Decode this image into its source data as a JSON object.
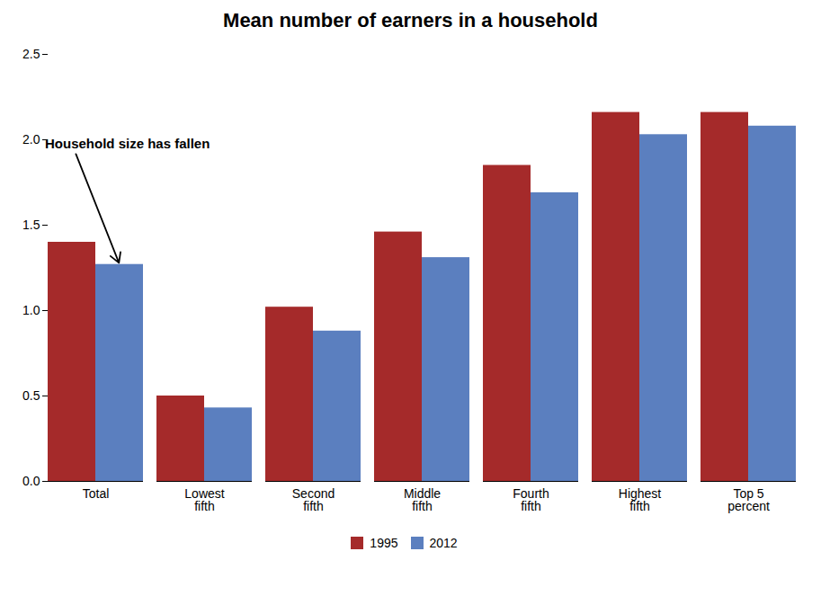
{
  "chart_data": {
    "type": "bar",
    "title": "Mean number of earners in a household",
    "categories": [
      "Total",
      "Lowest\nfifth",
      "Second\nfifth",
      "Middle\nfifth",
      "Fourth\nfifth",
      "Highest\nfifth",
      "Top 5\npercent"
    ],
    "series": [
      {
        "name": "1995",
        "color": "#A52A2A",
        "values": [
          1.4,
          0.5,
          1.02,
          1.46,
          1.85,
          2.16,
          2.16
        ]
      },
      {
        "name": "2012",
        "color": "#5B7FBF",
        "values": [
          1.27,
          0.43,
          0.88,
          1.31,
          1.69,
          2.03,
          2.08
        ]
      }
    ],
    "ylim": [
      0,
      2.5
    ],
    "yticks": [
      {
        "value": 0,
        "label": "0.0"
      },
      0.5,
      {
        "value": 1,
        "label": "1.0"
      },
      1.5,
      {
        "value": 2,
        "label": "2.0"
      },
      2.5
    ],
    "grid": false,
    "legend": "bottom",
    "annotation": "Household size has fallen"
  }
}
